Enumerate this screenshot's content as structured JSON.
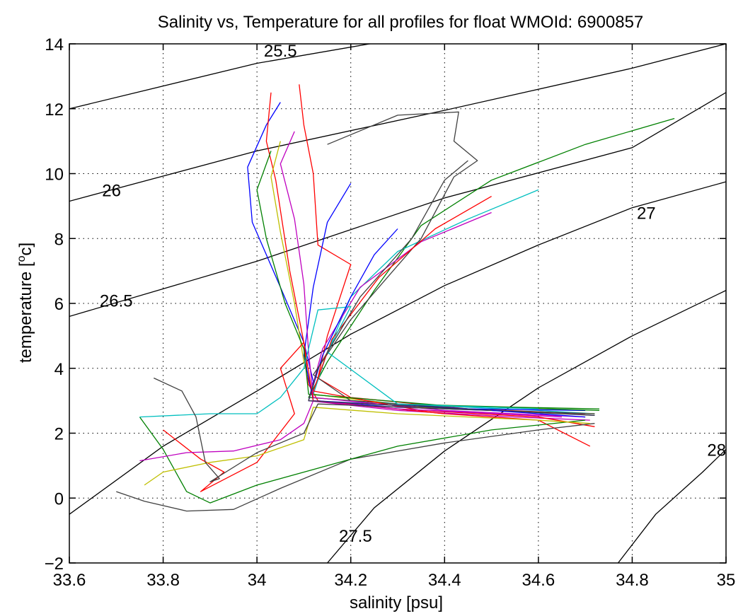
{
  "chart_data": {
    "type": "line",
    "title": "Salinity vs, Temperature for all profiles for float WMOId: 6900857",
    "xlabel": "salinity [psu]",
    "ylabel_parts": {
      "before": "temperature [",
      "superscript": "o",
      "after": "c]"
    },
    "xlim": [
      33.6,
      35.0
    ],
    "ylim": [
      -2,
      14
    ],
    "xticks": [
      "33.6",
      "33.8",
      "34",
      "34.2",
      "34.4",
      "34.6",
      "34.8",
      "35"
    ],
    "yticks": [
      "−2",
      "0",
      "2",
      "4",
      "6",
      "8",
      "10",
      "12",
      "14"
    ],
    "grid": true,
    "density_contours": [
      {
        "label": "25.5",
        "label_at": [
          34.05,
          13.8
        ],
        "points": [
          [
            33.6,
            12.0
          ],
          [
            34.0,
            13.4
          ],
          [
            34.4,
            14.4
          ]
        ]
      },
      {
        "label": "26",
        "label_at": [
          33.69,
          9.5
        ],
        "points": [
          [
            33.6,
            9.15
          ],
          [
            34.0,
            10.7
          ],
          [
            34.4,
            11.95
          ],
          [
            34.8,
            13.25
          ],
          [
            35.0,
            14.0
          ]
        ]
      },
      {
        "label": "26.5",
        "label_at": [
          33.7,
          6.1
        ],
        "points": [
          [
            33.6,
            5.6
          ],
          [
            34.0,
            7.3
          ],
          [
            34.4,
            9.25
          ],
          [
            34.8,
            10.8
          ],
          [
            35.0,
            12.5
          ]
        ]
      },
      {
        "label": "27",
        "label_at": [
          34.83,
          8.8
        ],
        "points": [
          [
            33.6,
            -0.5
          ],
          [
            33.8,
            1.6
          ],
          [
            34.0,
            3.3
          ],
          [
            34.2,
            5.05
          ],
          [
            34.4,
            6.55
          ],
          [
            34.6,
            7.8
          ],
          [
            34.8,
            8.95
          ],
          [
            35.0,
            9.75
          ]
        ]
      },
      {
        "label": "27.5",
        "label_at": [
          34.21,
          -1.15
        ],
        "points": [
          [
            34.15,
            -2.0
          ],
          [
            34.25,
            -0.3
          ],
          [
            34.4,
            1.45
          ],
          [
            34.6,
            3.4
          ],
          [
            34.8,
            5.0
          ],
          [
            35.0,
            6.4
          ]
        ]
      },
      {
        "label": "28",
        "label_at": [
          34.98,
          1.5
        ],
        "points": [
          [
            34.77,
            -2.0
          ],
          [
            34.85,
            -0.5
          ],
          [
            34.95,
            0.8
          ],
          [
            35.0,
            1.5
          ]
        ]
      }
    ],
    "series": [
      {
        "color": "#0000ff",
        "points": [
          [
            34.05,
            12.2
          ],
          [
            34.02,
            11.5
          ],
          [
            33.98,
            10.2
          ],
          [
            33.99,
            8.5
          ],
          [
            34.05,
            6.5
          ],
          [
            34.1,
            4.8
          ],
          [
            34.12,
            3.6
          ],
          [
            34.11,
            3.0
          ],
          [
            34.3,
            2.8
          ],
          [
            34.6,
            2.65
          ],
          [
            34.72,
            2.55
          ]
        ]
      },
      {
        "color": "#ff0000",
        "points": [
          [
            34.03,
            12.5
          ],
          [
            34.02,
            11.0
          ],
          [
            34.04,
            9.8
          ],
          [
            34.07,
            7.0
          ],
          [
            34.1,
            4.8
          ],
          [
            34.11,
            3.5
          ],
          [
            34.13,
            3.0
          ],
          [
            34.4,
            2.6
          ],
          [
            34.6,
            2.4
          ],
          [
            34.71,
            1.6
          ]
        ]
      },
      {
        "color": "#ff0000",
        "points": [
          [
            34.09,
            12.75
          ],
          [
            34.1,
            11.5
          ],
          [
            34.12,
            10.0
          ],
          [
            34.13,
            7.8
          ],
          [
            34.2,
            7.2
          ],
          [
            34.15,
            5.0
          ],
          [
            34.13,
            3.7
          ],
          [
            34.2,
            3.1
          ],
          [
            34.45,
            2.75
          ],
          [
            34.7,
            2.6
          ]
        ]
      },
      {
        "color": "#008000",
        "points": [
          [
            34.89,
            11.7
          ],
          [
            34.7,
            10.9
          ],
          [
            34.5,
            9.8
          ],
          [
            34.35,
            8.4
          ],
          [
            34.25,
            6.4
          ],
          [
            34.15,
            4.2
          ],
          [
            34.11,
            3.1
          ],
          [
            34.3,
            2.9
          ],
          [
            34.55,
            2.8
          ],
          [
            34.73,
            2.75
          ]
        ]
      },
      {
        "color": "#00bfbf",
        "points": [
          [
            34.6,
            9.5
          ],
          [
            34.45,
            8.6
          ],
          [
            34.3,
            7.6
          ],
          [
            34.2,
            6.2
          ],
          [
            34.15,
            4.5
          ],
          [
            34.12,
            3.2
          ],
          [
            34.3,
            2.9
          ],
          [
            34.6,
            2.7
          ],
          [
            34.72,
            2.6
          ]
        ]
      },
      {
        "color": "#bf00bf",
        "points": [
          [
            34.5,
            8.8
          ],
          [
            34.35,
            7.9
          ],
          [
            34.22,
            6.5
          ],
          [
            34.14,
            4.6
          ],
          [
            34.11,
            3.0
          ],
          [
            34.3,
            2.7
          ],
          [
            34.55,
            2.5
          ],
          [
            34.71,
            2.4
          ]
        ]
      },
      {
        "color": "#bfbf00",
        "points": [
          [
            34.05,
            11.0
          ],
          [
            34.03,
            9.9
          ],
          [
            34.05,
            8.2
          ],
          [
            34.08,
            6.0
          ],
          [
            34.1,
            4.2
          ],
          [
            34.12,
            3.2
          ],
          [
            34.35,
            2.8
          ],
          [
            34.6,
            2.65
          ],
          [
            34.72,
            2.6
          ]
        ]
      },
      {
        "color": "#404040",
        "points": [
          [
            34.15,
            10.9
          ],
          [
            34.3,
            11.8
          ],
          [
            34.43,
            11.9
          ],
          [
            34.42,
            11.0
          ],
          [
            34.47,
            10.4
          ],
          [
            34.42,
            9.9
          ],
          [
            34.35,
            8.0
          ],
          [
            34.2,
            5.5
          ],
          [
            34.12,
            3.8
          ],
          [
            34.2,
            3.0
          ],
          [
            34.5,
            2.7
          ],
          [
            34.72,
            2.55
          ]
        ]
      },
      {
        "color": "#0000ff",
        "points": [
          [
            34.2,
            9.7
          ],
          [
            34.15,
            8.5
          ],
          [
            34.12,
            6.5
          ],
          [
            34.1,
            4.4
          ],
          [
            34.12,
            3.0
          ],
          [
            34.45,
            2.75
          ],
          [
            34.7,
            2.7
          ]
        ]
      },
      {
        "color": "#ff0000",
        "points": [
          [
            34.5,
            9.3
          ],
          [
            34.38,
            8.3
          ],
          [
            34.26,
            6.8
          ],
          [
            34.16,
            4.9
          ],
          [
            34.12,
            3.3
          ],
          [
            34.35,
            2.7
          ],
          [
            34.6,
            2.5
          ],
          [
            34.72,
            2.2
          ]
        ]
      },
      {
        "color": "#008000",
        "points": [
          [
            34.03,
            10.7
          ],
          [
            34.0,
            9.5
          ],
          [
            34.02,
            8.0
          ],
          [
            34.06,
            6.0
          ],
          [
            34.1,
            4.6
          ],
          [
            34.11,
            3.2
          ],
          [
            34.4,
            2.85
          ],
          [
            34.73,
            2.7
          ]
        ]
      },
      {
        "color": "#bf00bf",
        "points": [
          [
            34.08,
            11.3
          ],
          [
            34.05,
            10.3
          ],
          [
            34.08,
            8.6
          ],
          [
            34.1,
            6.6
          ],
          [
            34.11,
            4.5
          ],
          [
            34.12,
            3.1
          ],
          [
            34.4,
            2.7
          ],
          [
            34.7,
            2.5
          ]
        ]
      },
      {
        "color": "#404040",
        "points": [
          [
            33.7,
            0.2
          ],
          [
            33.76,
            -0.1
          ],
          [
            33.85,
            -0.4
          ],
          [
            33.95,
            -0.35
          ],
          [
            34.05,
            0.3
          ],
          [
            34.2,
            1.2
          ],
          [
            34.4,
            1.7
          ],
          [
            34.6,
            2.1
          ],
          [
            34.72,
            2.3
          ]
        ]
      },
      {
        "color": "#008000",
        "points": [
          [
            33.75,
            2.5
          ],
          [
            33.8,
            1.5
          ],
          [
            33.85,
            0.2
          ],
          [
            33.9,
            -0.15
          ],
          [
            34.0,
            0.4
          ],
          [
            34.15,
            1.0
          ],
          [
            34.3,
            1.6
          ],
          [
            34.5,
            2.1
          ],
          [
            34.7,
            2.4
          ]
        ]
      },
      {
        "color": "#ff0000",
        "points": [
          [
            33.8,
            2.1
          ],
          [
            33.88,
            1.2
          ],
          [
            33.93,
            0.8
          ],
          [
            33.88,
            0.2
          ],
          [
            34.0,
            1.1
          ],
          [
            34.08,
            2.6
          ],
          [
            34.05,
            4.0
          ],
          [
            34.1,
            4.8
          ],
          [
            34.12,
            3.0
          ],
          [
            34.4,
            2.6
          ]
        ]
      },
      {
        "color": "#bf00bf",
        "points": [
          [
            33.75,
            1.15
          ],
          [
            33.85,
            1.4
          ],
          [
            33.95,
            1.45
          ],
          [
            34.05,
            1.8
          ],
          [
            34.1,
            2.3
          ],
          [
            34.12,
            3.0
          ],
          [
            34.3,
            2.75
          ],
          [
            34.65,
            2.5
          ]
        ]
      },
      {
        "color": "#00bfbf",
        "points": [
          [
            33.75,
            2.5
          ],
          [
            33.9,
            2.6
          ],
          [
            34.0,
            2.6
          ],
          [
            34.05,
            3.1
          ],
          [
            34.1,
            4.0
          ],
          [
            34.13,
            5.8
          ],
          [
            34.2,
            5.9
          ],
          [
            34.15,
            4.5
          ],
          [
            34.3,
            2.9
          ],
          [
            34.6,
            2.75
          ]
        ]
      },
      {
        "color": "#bfbf00",
        "points": [
          [
            33.76,
            0.4
          ],
          [
            33.8,
            0.8
          ],
          [
            33.9,
            1.1
          ],
          [
            34.0,
            1.3
          ],
          [
            34.1,
            1.8
          ],
          [
            34.12,
            2.8
          ],
          [
            34.3,
            2.6
          ],
          [
            34.6,
            2.4
          ],
          [
            34.71,
            2.3
          ]
        ]
      },
      {
        "color": "#404040",
        "points": [
          [
            33.78,
            3.7
          ],
          [
            33.84,
            3.3
          ],
          [
            33.87,
            2.5
          ],
          [
            33.89,
            1.1
          ],
          [
            33.92,
            0.6
          ],
          [
            33.9,
            0.5
          ],
          [
            34.0,
            1.4
          ],
          [
            34.1,
            2.0
          ],
          [
            34.13,
            2.9
          ],
          [
            34.4,
            2.75
          ],
          [
            34.72,
            2.6
          ]
        ]
      },
      {
        "color": "#0000ff",
        "points": [
          [
            34.3,
            8.3
          ],
          [
            34.25,
            7.5
          ],
          [
            34.2,
            6.2
          ],
          [
            34.14,
            4.4
          ],
          [
            34.11,
            3.0
          ],
          [
            34.5,
            2.7
          ],
          [
            34.7,
            2.5
          ]
        ]
      },
      {
        "color": "#404040",
        "points": [
          [
            34.45,
            10.4
          ],
          [
            34.4,
            9.8
          ],
          [
            34.33,
            8.0
          ],
          [
            34.22,
            6.2
          ],
          [
            34.13,
            4.0
          ],
          [
            34.11,
            3.0
          ],
          [
            34.5,
            2.7
          ]
        ]
      }
    ]
  }
}
